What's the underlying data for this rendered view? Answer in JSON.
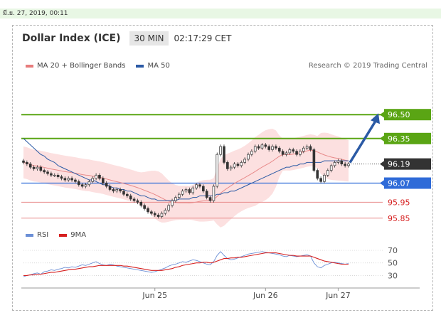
{
  "date_stamp": "มี.ย. 27, 2019, 00:11",
  "header": {
    "title": "Dollar Index (ICE)",
    "timeframe": "30 MIN",
    "clock": "02:17:29 CET"
  },
  "legend": {
    "ma20": {
      "label": "MA 20 + Bollinger Bands",
      "color": "#e77c7c"
    },
    "ma50": {
      "label": "MA 50",
      "color": "#2b5aa5"
    }
  },
  "credit": "Research © 2019 Trading Central",
  "rsi_legend": {
    "rsi": {
      "label": "RSI",
      "color": "#6b8fd6"
    },
    "ma9": {
      "label": "9MA",
      "color": "#d62020"
    }
  },
  "chart_data": [
    {
      "type": "line",
      "name": "price",
      "ylim": [
        95.8,
        96.55
      ],
      "x_ticks": [
        "Jun 25",
        "Jun 26",
        "Jun 27"
      ],
      "levels": [
        {
          "label": "96.50",
          "value": 96.5,
          "style": "resistance",
          "color": "#5aa514"
        },
        {
          "label": "96.35",
          "value": 96.35,
          "style": "resistance",
          "color": "#5aa514"
        },
        {
          "label": "96.19",
          "value": 96.19,
          "style": "last",
          "color": "#333333"
        },
        {
          "label": "96.07",
          "value": 96.07,
          "style": "support",
          "color": "#2f6bd8"
        },
        {
          "label": "95.95",
          "value": 95.95,
          "style": "support-text",
          "color": "#d62020"
        },
        {
          "label": "95.85",
          "value": 95.85,
          "style": "support-text",
          "color": "#d62020"
        }
      ],
      "series": [
        {
          "values": [
            96.2,
            96.19,
            96.17,
            96.16,
            96.17,
            96.15,
            96.14,
            96.13,
            96.12,
            96.12,
            96.11,
            96.1,
            96.09,
            96.1,
            96.09,
            96.08,
            96.06,
            96.05,
            96.06,
            96.08,
            96.1,
            96.12,
            96.1,
            96.07,
            96.05,
            96.03,
            96.02,
            96.03,
            96.02,
            96.0,
            95.99,
            95.97,
            95.96,
            95.95,
            95.93,
            95.91,
            95.89,
            95.88,
            95.87,
            95.86,
            95.88,
            95.9,
            95.93,
            95.96,
            95.98,
            96.0,
            96.02,
            96.03,
            96.01,
            96.04,
            96.06,
            96.05,
            96.02,
            95.98,
            95.96,
            96.05,
            96.25,
            96.3,
            96.2,
            96.16,
            96.17,
            96.19,
            96.18,
            96.2,
            96.22,
            96.25,
            96.27,
            96.3,
            96.29,
            96.31,
            96.3,
            96.28,
            96.3,
            96.29,
            96.27,
            96.25,
            96.26,
            96.28,
            96.27,
            96.25,
            96.27,
            96.29,
            96.3,
            96.28,
            96.15,
            96.1,
            96.08,
            96.12,
            96.15,
            96.18,
            96.2,
            96.21,
            96.19,
            96.18,
            96.19
          ]
        },
        {
          "values": [
            96.35,
            96.33,
            96.31,
            96.29,
            96.27,
            96.25,
            96.24,
            96.22,
            96.21,
            96.2,
            96.18,
            96.17,
            96.16,
            96.15,
            96.14,
            96.13,
            96.12,
            96.11,
            96.1,
            96.09,
            96.09,
            96.08,
            96.07,
            96.06,
            96.06,
            96.05,
            96.04,
            96.04,
            96.03,
            96.03,
            96.02,
            96.02,
            96.01,
            96.0,
            95.99,
            95.99,
            95.98,
            95.97,
            95.97,
            95.96,
            95.96,
            95.96,
            95.96,
            95.96,
            95.96,
            95.97,
            95.97,
            95.97,
            95.97,
            95.98,
            95.98,
            95.99,
            95.99,
            95.99,
            95.99,
            95.99,
            96.0,
            96.0,
            96.01,
            96.01,
            96.02,
            96.02,
            96.03,
            96.04,
            96.05,
            96.06,
            96.07,
            96.08,
            96.09,
            96.1,
            96.11,
            96.12,
            96.13,
            96.14,
            96.15,
            96.16,
            96.17,
            96.17,
            96.18,
            96.18,
            96.19,
            96.19,
            96.2,
            96.2,
            96.2,
            96.2,
            96.2,
            96.21,
            96.21,
            96.21,
            96.21,
            96.21,
            96.21,
            96.21,
            96.21
          ]
        }
      ]
    },
    {
      "type": "line",
      "name": "rsi",
      "ylim": [
        18,
        78
      ],
      "y_ticks": [
        70,
        50,
        30
      ],
      "series": [
        {
          "name": "RSI",
          "values": [
            28,
            30,
            31,
            33,
            34,
            32,
            36,
            37,
            39,
            38,
            40,
            41,
            43,
            42,
            44,
            43,
            45,
            47,
            46,
            48,
            50,
            52,
            49,
            47,
            46,
            48,
            47,
            45,
            44,
            43,
            42,
            41,
            40,
            39,
            38,
            37,
            36,
            35,
            36,
            38,
            40,
            42,
            45,
            47,
            48,
            50,
            52,
            51,
            53,
            55,
            54,
            52,
            50,
            48,
            47,
            52,
            62,
            68,
            62,
            57,
            55,
            56,
            58,
            60,
            62,
            64,
            65,
            66,
            67,
            68,
            67,
            66,
            65,
            64,
            63,
            61,
            60,
            62,
            61,
            60,
            61,
            62,
            63,
            61,
            50,
            44,
            42,
            46,
            48,
            50,
            51,
            50,
            49,
            48,
            49
          ]
        },
        {
          "name": "9MA",
          "values": [
            30,
            30,
            31,
            31,
            32,
            32,
            33,
            34,
            35,
            35,
            36,
            37,
            38,
            39,
            40,
            40,
            41,
            42,
            43,
            44,
            44,
            45,
            46,
            46,
            46,
            46,
            46,
            46,
            46,
            45,
            45,
            44,
            43,
            42,
            41,
            40,
            39,
            38,
            38,
            38,
            38,
            39,
            40,
            41,
            43,
            44,
            46,
            47,
            48,
            49,
            50,
            50,
            51,
            51,
            50,
            51,
            53,
            55,
            57,
            57,
            58,
            58,
            59,
            59,
            60,
            61,
            62,
            63,
            64,
            65,
            66,
            66,
            66,
            66,
            65,
            64,
            63,
            62,
            62,
            61,
            61,
            61,
            61,
            61,
            59,
            57,
            55,
            53,
            52,
            51,
            50,
            49,
            48,
            48,
            48
          ]
        }
      ]
    }
  ]
}
